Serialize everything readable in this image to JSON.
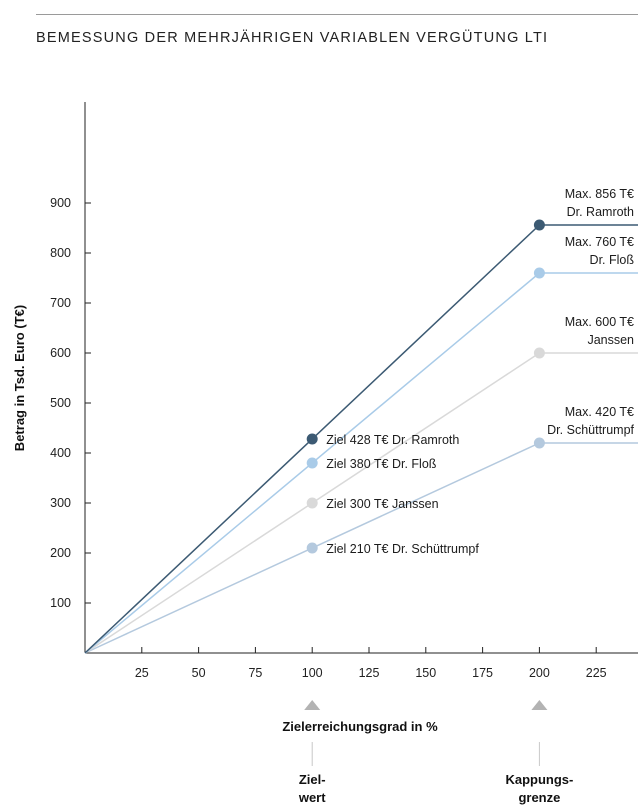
{
  "title": "BEMESSUNG DER MEHRJÄHRIGEN VARIABLEN VERGÜTUNG LTI",
  "chart_data": {
    "type": "line",
    "title": "BEMESSUNG DER MEHRJÄHRIGEN VARIABLEN VERGÜTUNG LTI",
    "xlabel": "Zielerreichungsgrad in %",
    "ylabel": "Betrag in Tsd. Euro (T€)",
    "xlim": [
      0,
      250
    ],
    "ylim": [
      0,
      950
    ],
    "x_ticks": [
      25,
      50,
      75,
      100,
      125,
      150,
      175,
      200,
      225
    ],
    "y_ticks": [
      100,
      200,
      300,
      400,
      500,
      600,
      700,
      800,
      900
    ],
    "grid": false,
    "series": [
      {
        "name": "Dr. Ramroth",
        "color": "#3c5a73",
        "target": 428,
        "cap": 856,
        "target_label": "Ziel 428 T€ Dr. Ramroth",
        "max_label_1": "Max. 856 T€",
        "max_label_2": "Dr. Ramroth"
      },
      {
        "name": "Dr. Floß",
        "color": "#a9cbe8",
        "target": 380,
        "cap": 760,
        "target_label": "Ziel 380 T€ Dr. Floß",
        "max_label_1": "Max. 760 T€",
        "max_label_2": "Dr. Floß"
      },
      {
        "name": "Janssen",
        "color": "#d9d9d9",
        "target": 300,
        "cap": 600,
        "target_label": "Ziel 300 T€ Janssen",
        "max_label_1": "Max. 600 T€",
        "max_label_2": "Janssen"
      },
      {
        "name": "Dr. Schüttrumpf",
        "color": "#b4c9de",
        "target": 210,
        "cap": 420,
        "target_label": "Ziel 210 T€ Dr. Schüttrumpf",
        "max_label_1": "Max. 420 T€",
        "max_label_2": "Dr. Schüttrumpf"
      }
    ],
    "markers": [
      {
        "x": 100,
        "label_1": "Ziel-",
        "label_2": "wert"
      },
      {
        "x": 200,
        "label_1": "Kappungs-",
        "label_2": "grenze"
      }
    ]
  }
}
